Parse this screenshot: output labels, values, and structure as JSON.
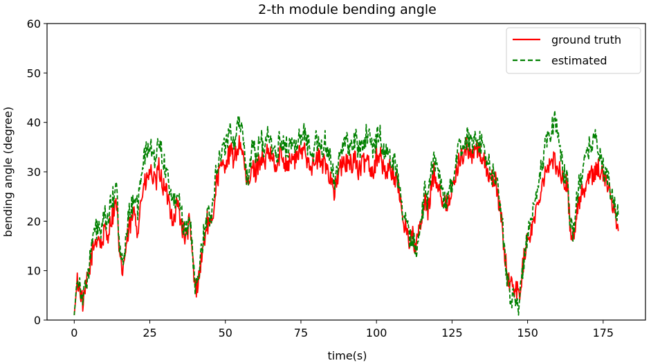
{
  "chart_data": {
    "type": "line",
    "title": "2-th module bending angle",
    "xlabel": "time(s)",
    "ylabel": "bending angle (degree)",
    "xlim": [
      -9,
      189
    ],
    "ylim": [
      0,
      60
    ],
    "xticks": [
      0,
      25,
      50,
      75,
      100,
      125,
      150,
      175
    ],
    "yticks": [
      0,
      10,
      20,
      30,
      40,
      50,
      60
    ],
    "grid": false,
    "legend_position": "top-right",
    "series": [
      {
        "name": "ground truth",
        "color": "#ff0000",
        "style": "solid",
        "x": [
          0,
          1,
          2,
          3,
          4,
          5,
          6,
          7,
          8,
          9,
          10,
          11,
          12,
          13,
          14,
          15,
          16,
          17,
          18,
          19,
          20,
          21,
          22,
          23,
          24,
          25,
          26,
          27,
          28,
          29,
          30,
          31,
          32,
          33,
          34,
          35,
          36,
          37,
          38,
          39,
          40,
          41,
          42,
          43,
          44,
          45,
          46,
          47,
          48,
          49,
          50,
          51,
          52,
          53,
          54,
          55,
          56,
          57,
          58,
          59,
          60,
          61,
          62,
          63,
          64,
          65,
          66,
          67,
          68,
          69,
          70,
          71,
          72,
          73,
          74,
          75,
          76,
          77,
          78,
          79,
          80,
          81,
          82,
          83,
          84,
          85,
          86,
          87,
          88,
          89,
          90,
          91,
          92,
          93,
          94,
          95,
          96,
          97,
          98,
          99,
          100,
          101,
          102,
          103,
          104,
          105,
          106,
          107,
          108,
          109,
          110,
          111,
          112,
          113,
          114,
          115,
          116,
          117,
          118,
          119,
          120,
          121,
          122,
          123,
          124,
          125,
          126,
          127,
          128,
          129,
          130,
          131,
          132,
          133,
          134,
          135,
          136,
          137,
          138,
          139,
          140,
          141,
          142,
          143,
          144,
          145,
          146,
          147,
          148,
          149,
          150,
          151,
          152,
          153,
          154,
          155,
          156,
          157,
          158,
          159,
          160,
          161,
          162,
          163,
          164,
          165,
          166,
          167,
          168,
          169,
          170,
          171,
          172,
          173,
          174,
          175,
          176,
          177,
          178,
          179,
          180
        ],
        "values": [
          1,
          8,
          6,
          3,
          7,
          10,
          14,
          16,
          17,
          15,
          18,
          17,
          20,
          22,
          24,
          12,
          10,
          14,
          18,
          20,
          22,
          18,
          24,
          27,
          28,
          30,
          29,
          27,
          31,
          28,
          26,
          25,
          22,
          20,
          24,
          21,
          18,
          16,
          20,
          14,
          6,
          8,
          12,
          16,
          20,
          18,
          22,
          28,
          30,
          31,
          32,
          33,
          34,
          32,
          35,
          36,
          33,
          27,
          28,
          31,
          30,
          32,
          33,
          31,
          34,
          33,
          32,
          30,
          34,
          33,
          32,
          32,
          33,
          32,
          34,
          33,
          35,
          33,
          32,
          31,
          32,
          33,
          31,
          32,
          30,
          29,
          26,
          28,
          31,
          31,
          32,
          31,
          32,
          33,
          30,
          31,
          32,
          33,
          31,
          30,
          33,
          34,
          31,
          30,
          31,
          30,
          29,
          27,
          24,
          20,
          18,
          16,
          17,
          14,
          18,
          20,
          24,
          22,
          26,
          30,
          28,
          27,
          24,
          23,
          25,
          26,
          28,
          32,
          33,
          34,
          35,
          34,
          33,
          35,
          34,
          33,
          31,
          30,
          28,
          29,
          26,
          22,
          16,
          10,
          8,
          6,
          7,
          5,
          8,
          14,
          16,
          18,
          20,
          22,
          26,
          28,
          31,
          31,
          32,
          32,
          31,
          30,
          27,
          28,
          20,
          16,
          21,
          24,
          26,
          27,
          28,
          29,
          30,
          31,
          30,
          29,
          28,
          26,
          24,
          22,
          18
        ],
        "noise": 2.2
      },
      {
        "name": "estimated",
        "color": "#008000",
        "style": "dashed",
        "x": [
          0,
          1,
          2,
          3,
          4,
          5,
          6,
          7,
          8,
          9,
          10,
          11,
          12,
          13,
          14,
          15,
          16,
          17,
          18,
          19,
          20,
          21,
          22,
          23,
          24,
          25,
          26,
          27,
          28,
          29,
          30,
          31,
          32,
          33,
          34,
          35,
          36,
          37,
          38,
          39,
          40,
          41,
          42,
          43,
          44,
          45,
          46,
          47,
          48,
          49,
          50,
          51,
          52,
          53,
          54,
          55,
          56,
          57,
          58,
          59,
          60,
          61,
          62,
          63,
          64,
          65,
          66,
          67,
          68,
          69,
          70,
          71,
          72,
          73,
          74,
          75,
          76,
          77,
          78,
          79,
          80,
          81,
          82,
          83,
          84,
          85,
          86,
          87,
          88,
          89,
          90,
          91,
          92,
          93,
          94,
          95,
          96,
          97,
          98,
          99,
          100,
          101,
          102,
          103,
          104,
          105,
          106,
          107,
          108,
          109,
          110,
          111,
          112,
          113,
          114,
          115,
          116,
          117,
          118,
          119,
          120,
          121,
          122,
          123,
          124,
          125,
          126,
          127,
          128,
          129,
          130,
          131,
          132,
          133,
          134,
          135,
          136,
          137,
          138,
          139,
          140,
          141,
          142,
          143,
          144,
          145,
          146,
          147,
          148,
          149,
          150,
          151,
          152,
          153,
          154,
          155,
          156,
          157,
          158,
          159,
          160,
          161,
          162,
          163,
          164,
          165,
          166,
          167,
          168,
          169,
          170,
          171,
          172,
          173,
          174,
          175,
          176,
          177,
          178,
          179,
          180
        ],
        "values": [
          1,
          9,
          7,
          4,
          8,
          11,
          16,
          18,
          19,
          17,
          21,
          20,
          23,
          25,
          27,
          14,
          11,
          16,
          21,
          23,
          26,
          22,
          29,
          33,
          34,
          35,
          34,
          32,
          37,
          34,
          31,
          29,
          26,
          23,
          27,
          24,
          20,
          18,
          22,
          15,
          5,
          9,
          14,
          18,
          22,
          20,
          25,
          31,
          33,
          34,
          36,
          37,
          38,
          36,
          40,
          40,
          37,
          29,
          30,
          35,
          33,
          35,
          37,
          34,
          37,
          36,
          35,
          32,
          37,
          36,
          35,
          35,
          36,
          35,
          37,
          36,
          38,
          36,
          35,
          34,
          36,
          37,
          34,
          36,
          33,
          32,
          28,
          31,
          35,
          35,
          36,
          34,
          36,
          37,
          34,
          35,
          37,
          38,
          36,
          34,
          37,
          39,
          35,
          33,
          34,
          33,
          32,
          29,
          25,
          21,
          19,
          16,
          17,
          14,
          19,
          21,
          26,
          24,
          29,
          33,
          31,
          29,
          25,
          24,
          26,
          28,
          30,
          34,
          35,
          36,
          37,
          36,
          35,
          37,
          36,
          35,
          33,
          32,
          29,
          30,
          27,
          23,
          17,
          10,
          6,
          4,
          5,
          3,
          7,
          14,
          17,
          19,
          22,
          24,
          29,
          32,
          36,
          37,
          39,
          41,
          38,
          34,
          29,
          30,
          21,
          17,
          23,
          27,
          30,
          32,
          34,
          36,
          37,
          36,
          33,
          31,
          29,
          27,
          25,
          23,
          21
        ],
        "noise": 2.4
      }
    ]
  }
}
